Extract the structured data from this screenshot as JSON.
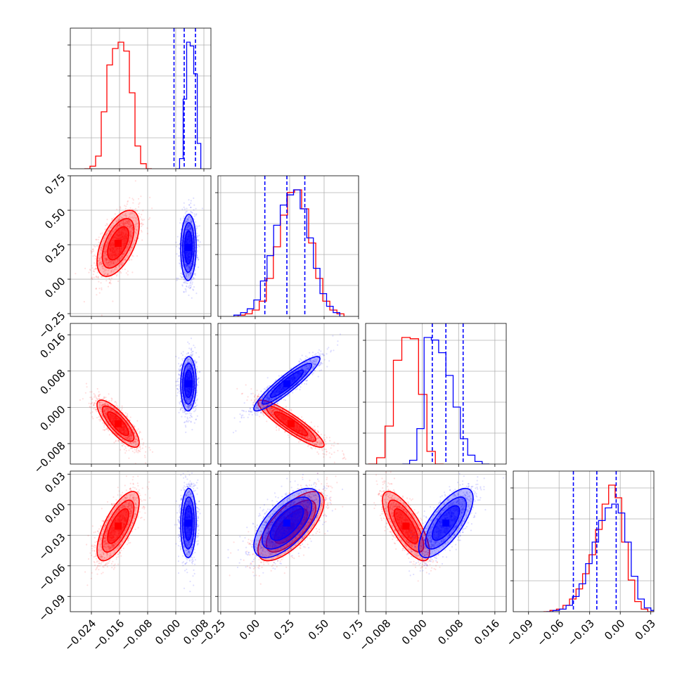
{
  "chart_data": {
    "type": "corner",
    "title": "",
    "parameters": [
      {
        "label": "",
        "range": [
          -0.03,
          0.01
        ],
        "ticks": [
          -0.024,
          -0.016,
          -0.008,
          0.0,
          0.008
        ],
        "tick_labels": [
          "−0.024",
          "−0.016",
          "−0.008",
          "0.000",
          "0.008"
        ]
      },
      {
        "label": "",
        "range": [
          -0.27,
          0.75
        ],
        "ticks": [
          -0.25,
          0.0,
          0.25,
          0.5,
          0.75
        ],
        "tick_labels": [
          "−0.25",
          "0.00",
          "0.25",
          "0.50",
          "0.75"
        ]
      },
      {
        "label": "",
        "range": [
          -0.0125,
          0.0185
        ],
        "ticks": [
          -0.008,
          0.0,
          0.008,
          0.016
        ],
        "tick_labels": [
          "−0.008",
          "0.000",
          "0.008",
          "0.016"
        ]
      },
      {
        "label": "",
        "range": [
          -0.105,
          0.033
        ],
        "ticks": [
          -0.09,
          -0.06,
          -0.03,
          0.0,
          0.03
        ],
        "tick_labels": [
          "−0.09",
          "−0.06",
          "−0.03",
          "0.00",
          "0.03"
        ]
      }
    ],
    "grid": true,
    "legend": "none",
    "series": [
      {
        "color": "#ff0000",
        "mean": [
          -0.0164,
          0.26,
          -0.0036,
          -0.021
        ],
        "sd": [
          0.003,
          0.12,
          0.0026,
          0.017
        ],
        "corr": [
          [
            1,
            0.55,
            -0.8,
            0.7
          ],
          [
            0.55,
            1,
            -0.9,
            0.7
          ],
          [
            -0.8,
            -0.9,
            1,
            -0.75
          ],
          [
            0.7,
            0.7,
            -0.75,
            1
          ]
        ],
        "histograms": [
          [
            0.0,
            0.02,
            0.1,
            0.45,
            0.82,
            0.95,
            1.0,
            0.93,
            0.6,
            0.18,
            0.04,
            0.0
          ],
          [
            0.01,
            0.02,
            0.05,
            0.12,
            0.3,
            0.55,
            0.8,
            0.98,
            1.0,
            0.85,
            0.58,
            0.3,
            0.12,
            0.05,
            0.02
          ],
          [
            0.0,
            0.05,
            0.3,
            0.82,
            1.0,
            0.99,
            0.55,
            0.1,
            0.0
          ],
          [
            0.0,
            0.01,
            0.02,
            0.05,
            0.1,
            0.18,
            0.3,
            0.45,
            0.65,
            0.85,
            1.0,
            0.9,
            0.55,
            0.25,
            0.08,
            0.02,
            0.0
          ]
        ]
      },
      {
        "color": "#0000ff",
        "mean": [
          0.0036,
          0.23,
          0.0052,
          -0.018
        ],
        "sd": [
          0.0011,
          0.12,
          0.003,
          0.017
        ],
        "corr": [
          [
            1,
            0.05,
            0.05,
            0.05
          ],
          [
            0.05,
            1,
            0.92,
            0.65
          ],
          [
            0.05,
            0.92,
            1,
            0.72
          ],
          [
            0.05,
            0.65,
            0.72,
            1
          ]
        ],
        "histograms": [
          [
            0.0,
            0.08,
            0.55,
            1.0,
            0.97,
            0.75,
            0.2
          ],
          [
            0.01,
            0.03,
            0.06,
            0.13,
            0.28,
            0.48,
            0.72,
            0.88,
            0.96,
            1.0,
            0.85,
            0.62,
            0.38,
            0.18,
            0.08,
            0.03
          ],
          [
            0.0,
            0.03,
            0.28,
            1.0,
            0.98,
            0.88,
            0.7,
            0.45,
            0.2,
            0.07,
            0.02,
            0.0
          ],
          [
            0.0,
            0.01,
            0.02,
            0.05,
            0.12,
            0.22,
            0.38,
            0.55,
            0.72,
            0.82,
            0.85,
            0.78,
            0.55,
            0.28,
            0.1,
            0.03,
            0.01
          ]
        ],
        "quantile_lines": [
          [
            -0.0005,
            0.0024,
            0.0056
          ],
          [
            0.07,
            0.23,
            0.36
          ],
          [
            0.0022,
            0.0052,
            0.009
          ],
          [
            -0.046,
            -0.023,
            -0.004
          ]
        ]
      }
    ]
  }
}
